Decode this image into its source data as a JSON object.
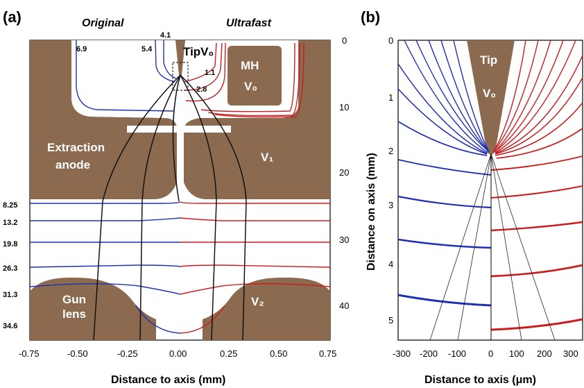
{
  "colors": {
    "electrode": "#8b6a4f",
    "original_lines": "#1f2fb3",
    "ultrafast_lines": "#c81e1e",
    "trajectory": "#111111"
  },
  "panel_a": {
    "label": "(a)",
    "header_left": "Original",
    "header_right": "Ultrafast",
    "tip_label": "TipV₀",
    "mh_label": "MH",
    "mh_v_label": "V₀",
    "extraction_label_1": "Extraction",
    "extraction_label_2": "anode",
    "v1_label": "V₁",
    "gun_label_1": "Gun",
    "gun_label_2": "lens",
    "v2_label": "V₂",
    "top_left_potentials": [
      "6.9",
      "5.4",
      "4.1"
    ],
    "top_right_potentials": [
      "1.1",
      "2.8"
    ],
    "left_potentials": [
      "8.25",
      "13.2",
      "19.8",
      "26.3",
      "31.3",
      "34.6"
    ],
    "right_axis_ticks": [
      "0",
      "10",
      "20",
      "30",
      "40"
    ],
    "x_ticks": [
      "-0.75",
      "-0.50",
      "-0.25",
      "0.00",
      "0.25",
      "0.50",
      "0.75"
    ],
    "x_title": "Distance to axis (mm)"
  },
  "panel_b": {
    "label": "(b)",
    "tip_label": "Tip",
    "tip_v_label": "V₀",
    "y_ticks": [
      "0",
      "1",
      "2",
      "3",
      "4",
      "5"
    ],
    "y_title": "Distance on axis (mm)",
    "x_ticks": [
      "-300",
      "-200",
      "-100",
      "0",
      "100",
      "200",
      "300"
    ],
    "x_title": "Distance to axis (μm)"
  }
}
